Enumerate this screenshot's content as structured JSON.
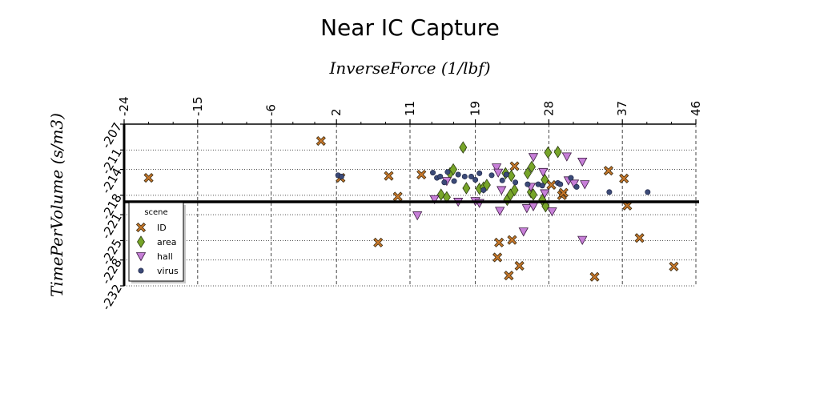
{
  "chart_data": {
    "type": "scatter",
    "title": "Near IC Capture",
    "xlabel": "InverseForce (1/lbf)",
    "ylabel": "TimePerVolume (s/m3)",
    "xlim": [
      -24,
      46
    ],
    "ylim": [
      -232,
      -207
    ],
    "x_ticks": [
      "-24",
      "-15",
      "-6",
      "2",
      "11",
      "19",
      "28",
      "37",
      "46"
    ],
    "y_ticks": [
      "-207",
      "-211",
      "-214",
      "-218",
      "-221",
      "-225",
      "-228",
      "-232"
    ],
    "x_axis_position": "top",
    "grid": true,
    "reference_line_y": -219,
    "legend": {
      "title": "scene",
      "position": "left"
    },
    "series": [
      {
        "name": "ID",
        "marker": "x-square",
        "color": "#c8782a",
        "points": [
          [
            -21,
            -215.3
          ],
          [
            0.1,
            -209.6
          ],
          [
            2.5,
            -215.3
          ],
          [
            7.1,
            -225.3
          ],
          [
            8.4,
            -215.0
          ],
          [
            9.5,
            -218.2
          ],
          [
            12.4,
            -214.8
          ],
          [
            21.9,
            -225.3
          ],
          [
            21.7,
            -227.6
          ],
          [
            23.1,
            -230.4
          ],
          [
            23.5,
            -224.9
          ],
          [
            23.8,
            -213.5
          ],
          [
            24.4,
            -228.9
          ],
          [
            28.3,
            -216.4
          ],
          [
            29.6,
            -218.0
          ],
          [
            29.8,
            -217.6
          ],
          [
            33.6,
            -230.6
          ],
          [
            35.3,
            -214.2
          ],
          [
            37.2,
            -215.4
          ],
          [
            37.6,
            -219.6
          ],
          [
            39.1,
            -224.6
          ],
          [
            43.3,
            -229.0
          ]
        ]
      },
      {
        "name": "area",
        "marker": "diamond",
        "color": "#77a529",
        "points": [
          [
            14.8,
            -217.9
          ],
          [
            15.5,
            -218.3
          ],
          [
            15.9,
            -214.6
          ],
          [
            16.3,
            -214.0
          ],
          [
            17.5,
            -210.6
          ],
          [
            17.9,
            -216.9
          ],
          [
            19.5,
            -217.0
          ],
          [
            20.0,
            -216.8
          ],
          [
            20.4,
            -216.4
          ],
          [
            22.7,
            -214.6
          ],
          [
            22.9,
            -218.7
          ],
          [
            23.3,
            -217.9
          ],
          [
            23.4,
            -215.0
          ],
          [
            23.8,
            -217.2
          ],
          [
            25.4,
            -214.6
          ],
          [
            25.9,
            -213.6
          ],
          [
            25.8,
            -217.5
          ],
          [
            26.1,
            -217.9
          ],
          [
            27.2,
            -218.7
          ],
          [
            27.6,
            -219.7
          ],
          [
            27.5,
            -215.6
          ],
          [
            27.9,
            -211.4
          ],
          [
            29.1,
            -211.3
          ]
        ]
      },
      {
        "name": "hall",
        "marker": "triangle-down",
        "color": "#c77fd8",
        "points": [
          [
            11.9,
            -221.1
          ],
          [
            14.0,
            -218.6
          ],
          [
            15.5,
            -215.8
          ],
          [
            16.9,
            -219.0
          ],
          [
            19.0,
            -218.9
          ],
          [
            19.5,
            -219.2
          ],
          [
            21.6,
            -213.7
          ],
          [
            21.8,
            -214.5
          ],
          [
            22.0,
            -220.4
          ],
          [
            22.2,
            -217.2
          ],
          [
            24.9,
            -223.6
          ],
          [
            25.3,
            -220.0
          ],
          [
            25.8,
            -216.7
          ],
          [
            26.1,
            -219.7
          ],
          [
            26.1,
            -212.1
          ],
          [
            27.3,
            -214.4
          ],
          [
            27.5,
            -217.7
          ],
          [
            28.4,
            -220.5
          ],
          [
            30.2,
            -212.0
          ],
          [
            30.4,
            -215.7
          ],
          [
            31.1,
            -216.2
          ],
          [
            32.1,
            -212.8
          ],
          [
            32.4,
            -216.3
          ],
          [
            32.1,
            -224.9
          ]
        ]
      },
      {
        "name": "virus",
        "marker": "circle",
        "color": "#3b4a78",
        "points": [
          [
            2.2,
            -214.9
          ],
          [
            2.6,
            -215.1
          ],
          [
            13.8,
            -214.5
          ],
          [
            14.3,
            -215.3
          ],
          [
            14.7,
            -215.1
          ],
          [
            15.2,
            -216.0
          ],
          [
            15.6,
            -214.4
          ],
          [
            16.4,
            -215.8
          ],
          [
            16.9,
            -214.8
          ],
          [
            17.7,
            -215.1
          ],
          [
            18.5,
            -215.1
          ],
          [
            19.0,
            -215.6
          ],
          [
            19.5,
            -214.6
          ],
          [
            20.0,
            -217.2
          ],
          [
            21.0,
            -214.9
          ],
          [
            22.3,
            -215.7
          ],
          [
            22.8,
            -214.8
          ],
          [
            23.9,
            -216.0
          ],
          [
            25.4,
            -216.3
          ],
          [
            26.7,
            -216.3
          ],
          [
            27.2,
            -216.5
          ],
          [
            29.1,
            -216.1
          ],
          [
            29.4,
            -216.3
          ],
          [
            30.7,
            -215.3
          ],
          [
            31.4,
            -216.7
          ],
          [
            35.4,
            -217.5
          ],
          [
            40.1,
            -217.5
          ]
        ]
      }
    ]
  }
}
